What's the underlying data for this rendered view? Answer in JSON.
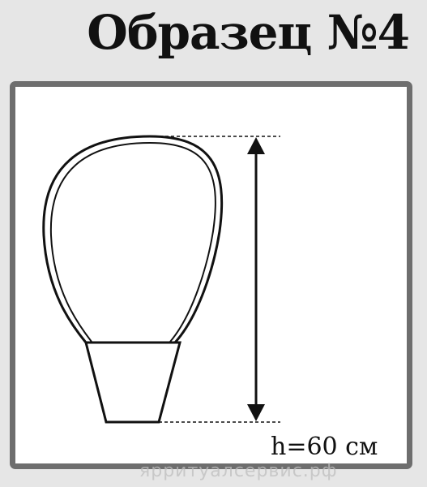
{
  "title": "Образец №4",
  "dimension": {
    "label": "h=60 см"
  },
  "watermark": "ярритуалсервис.рф",
  "colors": {
    "background": "#e6e6e6",
    "panel": "#ffffff",
    "panel_border": "#6e6e6e",
    "line": "#111111"
  }
}
